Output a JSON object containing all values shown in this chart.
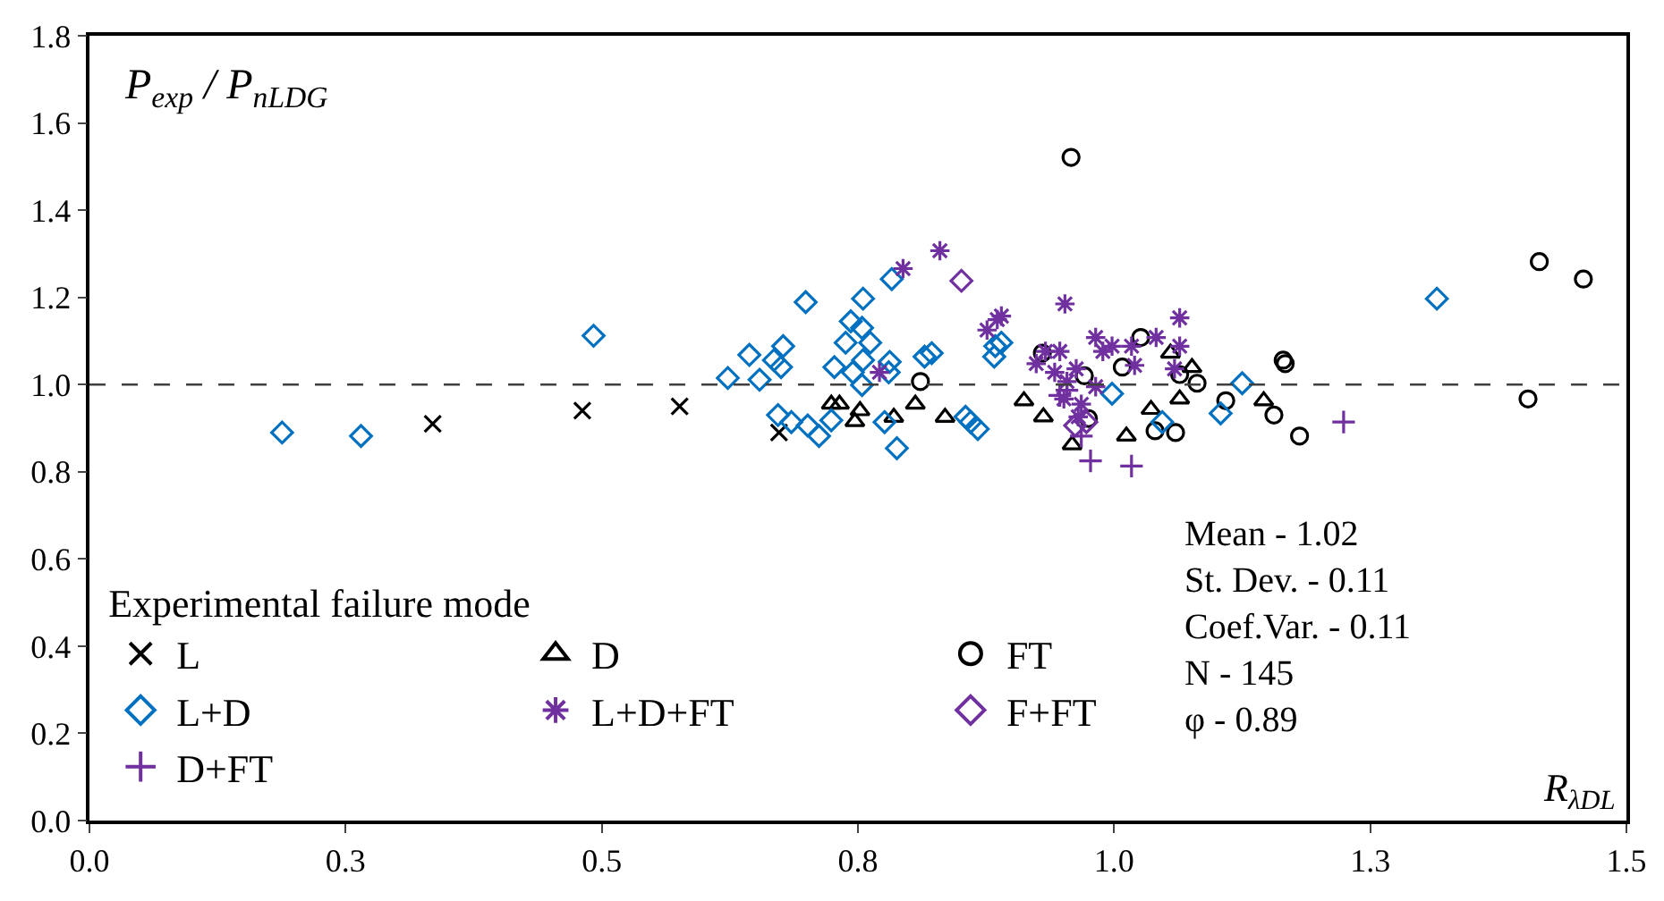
{
  "chart_data": {
    "type": "scatter",
    "ylabel": "P$_{exp}$ / P$_{nLDG}$",
    "xlabel": "R$_{λDL}$",
    "legend_title": "Experimental failure mode",
    "legend": "bottom left",
    "xlim": [
      0,
      1.5
    ],
    "xticks": [
      {
        "value": 0,
        "label": "0.0"
      },
      {
        "value": 0.25,
        "label": "0.3"
      },
      {
        "value": 0.5,
        "label": "0.5"
      },
      {
        "value": 0.75,
        "label": "0.8"
      },
      {
        "value": 1,
        "label": "1.0"
      },
      {
        "value": 1.25,
        "label": "1.3"
      },
      {
        "value": 1.5,
        "label": "1.5"
      }
    ],
    "ylim": [
      0,
      1.8
    ],
    "yticks": [
      {
        "value": 0,
        "label": "0.0"
      },
      {
        "value": 0.2,
        "label": "0.2"
      },
      {
        "value": 0.4,
        "label": "0.4"
      },
      {
        "value": 0.6,
        "label": "0.6"
      },
      {
        "value": 0.8,
        "label": "0.8"
      },
      {
        "value": 1,
        "label": "1.0"
      },
      {
        "value": 1.2,
        "label": "1.2"
      },
      {
        "value": 1.4,
        "label": "1.4"
      },
      {
        "value": 1.6,
        "label": "1.6"
      },
      {
        "value": 1.8,
        "label": "1.8"
      }
    ],
    "ref_lines": [
      {
        "axis": "y",
        "value": 1,
        "label": null,
        "color": "#404040",
        "line_style": "dashed"
      }
    ],
    "annotations": [
      "Mean - 1.02",
      "St. Dev. - 0.11",
      "Coef.Var. - 0.11",
      "N - 145",
      "φ - 0.89"
    ],
    "series": [
      {
        "name": "L",
        "color": "#000000",
        "marker": "cross",
        "x": [
          0.335,
          0.481,
          0.576,
          0.673
        ],
        "values": [
          0.91,
          0.94,
          0.95,
          0.89
        ]
      },
      {
        "name": "D",
        "color": "#000000",
        "marker": "triangle",
        "x": [
          0.724,
          0.732,
          0.752,
          0.747,
          0.785,
          0.806,
          0.835,
          0.912,
          0.931,
          0.959,
          1.012,
          1.036,
          1.055,
          1.064,
          1.076,
          1.146
        ],
        "values": [
          0.955,
          0.955,
          0.94,
          0.915,
          0.925,
          0.955,
          0.925,
          0.963,
          0.926,
          0.862,
          0.882,
          0.943,
          1.072,
          0.967,
          1.039,
          0.963
        ]
      },
      {
        "name": "FT",
        "color": "#000000",
        "marker": "circle",
        "x": [
          0.811,
          0.93,
          0.971,
          0.975,
          1.008,
          1.026,
          1.04,
          1.06,
          1.064,
          1.081,
          1.109,
          1.156,
          1.165,
          1.167,
          1.181,
          1.415,
          1.458,
          1.404,
          0.958
        ],
        "values": [
          1.007,
          1.072,
          1.02,
          0.922,
          1.04,
          1.108,
          0.894,
          0.89,
          1.023,
          1.003,
          0.963,
          0.93,
          1.056,
          1.048,
          0.882,
          1.282,
          1.242,
          0.967,
          1.521
        ]
      },
      {
        "name": "L+D",
        "color": "#0070c0",
        "marker": "diamond",
        "x": [
          0.188,
          0.265,
          0.492,
          0.623,
          0.644,
          0.654,
          0.668,
          0.677,
          0.675,
          0.699,
          0.672,
          0.685,
          0.701,
          0.712,
          0.724,
          0.727,
          0.738,
          0.743,
          0.754,
          0.755,
          0.762,
          0.745,
          0.754,
          0.755,
          0.776,
          0.78,
          0.781,
          0.783,
          0.788,
          0.815,
          0.822,
          0.855,
          0.86,
          0.867,
          0.883,
          0.884,
          0.89,
          0.998,
          1.047,
          1.104,
          1.125,
          1.315
        ],
        "values": [
          0.89,
          0.882,
          1.112,
          1.015,
          1.068,
          1.011,
          1.056,
          1.088,
          1.04,
          1.189,
          0.93,
          0.914,
          0.906,
          0.882,
          0.918,
          1.04,
          1.096,
          1.145,
          1.13,
          1.197,
          1.096,
          1.028,
          0.999,
          1.056,
          0.914,
          1.028,
          1.052,
          1.242,
          0.854,
          1.064,
          1.072,
          0.926,
          0.914,
          0.898,
          1.064,
          1.088,
          1.096,
          0.979,
          0.914,
          0.934,
          1.003,
          1.197
        ]
      },
      {
        "name": "L+D+FT",
        "color": "#7030a0",
        "x": [
          0.794,
          0.83,
          0.771,
          0.876,
          0.886,
          0.89,
          0.952,
          1.064,
          0.924,
          0.933,
          0.947,
          0.942,
          0.954,
          0.963,
          0.982,
          0.989,
          0.998,
          1.017,
          1.02,
          1.041,
          1.064,
          1.059,
          0.951,
          0.968,
          0.965,
          0.982
        ],
        "values": [
          1.266,
          1.307,
          1.028,
          1.125,
          1.149,
          1.157,
          1.185,
          1.153,
          1.048,
          1.076,
          1.076,
          1.028,
          1.007,
          1.036,
          1.108,
          1.076,
          1.088,
          1.088,
          1.044,
          1.108,
          1.088,
          1.036,
          0.967,
          0.955,
          0.926,
          0.995
        ]
      },
      {
        "name": "F+FT",
        "color": "#7030a0",
        "marker": "diamond",
        "x": [
          0.851,
          0.973,
          0.962
        ],
        "values": [
          1.238,
          0.914,
          0.906
        ]
      },
      {
        "name": "D+FT",
        "color": "#7030a0",
        "marker": "plus",
        "x": [
          0.977,
          1.017,
          0.954,
          0.947,
          0.968,
          1.224
        ],
        "values": [
          0.825,
          0.813,
          0.987,
          0.975,
          0.882,
          0.914
        ]
      }
    ]
  }
}
